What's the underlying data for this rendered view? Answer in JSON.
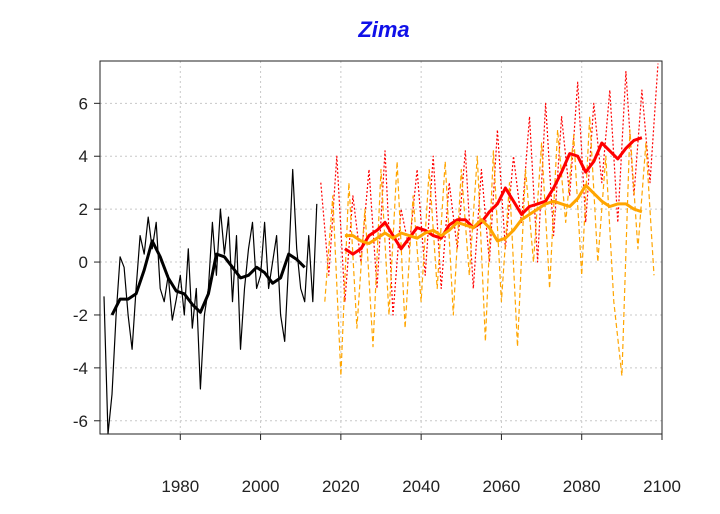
{
  "chart_data": {
    "type": "line",
    "title": "Zima",
    "xlabel": "",
    "ylabel": "",
    "xlim": [
      1960,
      2100
    ],
    "ylim": [
      -6.5,
      7.6
    ],
    "x_ticks": [
      1980,
      2000,
      2020,
      2040,
      2060,
      2080,
      2100
    ],
    "y_ticks": [
      -6,
      -4,
      -2,
      0,
      2,
      4,
      6
    ],
    "grid": true,
    "grid_style": "dotted",
    "legend": "none",
    "colors": {
      "title": "#1010e8",
      "observed": "#000000",
      "scenario_high": "#ff0000",
      "scenario_low": "#ffa500"
    },
    "series": [
      {
        "key": "observed_annual",
        "style": "solid-thin",
        "color": "#000000",
        "x": [
          1961,
          1962,
          1963,
          1964,
          1965,
          1966,
          1967,
          1968,
          1969,
          1970,
          1971,
          1972,
          1973,
          1974,
          1975,
          1976,
          1977,
          1978,
          1979,
          1980,
          1981,
          1982,
          1983,
          1984,
          1985,
          1986,
          1987,
          1988,
          1989,
          1990,
          1991,
          1992,
          1993,
          1994,
          1995,
          1996,
          1997,
          1998,
          1999,
          2000,
          2001,
          2002,
          2003,
          2004,
          2005,
          2006,
          2007,
          2008,
          2009,
          2010,
          2011,
          2012,
          2013,
          2014
        ],
        "y": [
          -1.3,
          -6.5,
          -5.0,
          -2.0,
          0.2,
          -0.2,
          -2.0,
          -3.3,
          -1.0,
          1.0,
          0.3,
          1.7,
          0.5,
          1.5,
          -1.0,
          -1.5,
          -0.5,
          -2.2,
          -1.4,
          -0.5,
          -2.0,
          0.5,
          -2.5,
          -1.0,
          -4.8,
          -2.0,
          -1.0,
          1.5,
          -0.5,
          2.0,
          0.3,
          1.7,
          -1.5,
          1.0,
          -3.3,
          -1.0,
          0.5,
          1.5,
          -1.0,
          -0.5,
          1.5,
          -1.0,
          0.0,
          1.0,
          -2.0,
          -3.0,
          0.0,
          3.5,
          0.5,
          -1.0,
          -1.5,
          1.0,
          -1.5,
          2.2
        ]
      },
      {
        "key": "observed_smooth",
        "style": "solid-thick",
        "color": "#000000",
        "x": [
          1963,
          1965,
          1967,
          1969,
          1971,
          1973,
          1975,
          1977,
          1979,
          1981,
          1983,
          1985,
          1987,
          1989,
          1991,
          1993,
          1995,
          1997,
          1999,
          2001,
          2003,
          2005,
          2007,
          2009,
          2011
        ],
        "y": [
          -2.0,
          -1.4,
          -1.4,
          -1.2,
          -0.3,
          0.8,
          0.2,
          -0.6,
          -1.1,
          -1.2,
          -1.6,
          -1.9,
          -1.2,
          0.3,
          0.2,
          -0.2,
          -0.6,
          -0.5,
          -0.2,
          -0.4,
          -0.8,
          -0.6,
          0.3,
          0.1,
          -0.2
        ]
      },
      {
        "key": "scenario_red_annual",
        "style": "dotted-thin",
        "color": "#ff0000",
        "x": [
          2015,
          2017,
          2019,
          2021,
          2023,
          2025,
          2027,
          2029,
          2031,
          2033,
          2035,
          2037,
          2039,
          2041,
          2043,
          2045,
          2047,
          2049,
          2051,
          2053,
          2055,
          2057,
          2059,
          2061,
          2063,
          2065,
          2067,
          2069,
          2071,
          2073,
          2075,
          2077,
          2079,
          2081,
          2083,
          2085,
          2087,
          2089,
          2091,
          2093,
          2095,
          2097,
          2099
        ],
        "y": [
          3.0,
          -0.5,
          4.0,
          -1.5,
          2.5,
          0.0,
          3.5,
          -1.0,
          4.2,
          -2.0,
          2.0,
          0.5,
          3.5,
          -0.5,
          4.0,
          -1.0,
          3.0,
          0.5,
          4.2,
          -1.0,
          3.5,
          0.0,
          5.0,
          0.5,
          4.0,
          1.5,
          5.5,
          0.0,
          6.0,
          1.0,
          5.5,
          2.5,
          6.8,
          1.5,
          6.0,
          3.0,
          6.5,
          1.5,
          7.2,
          2.5,
          6.5,
          3.0,
          7.5
        ]
      },
      {
        "key": "scenario_orange_annual",
        "style": "dashed-thin",
        "color": "#ffa500",
        "x": [
          2016,
          2018,
          2020,
          2022,
          2024,
          2026,
          2028,
          2030,
          2032,
          2034,
          2036,
          2038,
          2040,
          2042,
          2044,
          2046,
          2048,
          2050,
          2052,
          2054,
          2056,
          2058,
          2060,
          2062,
          2064,
          2066,
          2068,
          2070,
          2072,
          2074,
          2076,
          2078,
          2080,
          2082,
          2084,
          2086,
          2088,
          2090,
          2092,
          2094,
          2096,
          2098
        ],
        "y": [
          -1.5,
          2.5,
          -4.3,
          3.0,
          -2.5,
          2.0,
          -3.2,
          3.5,
          -2.0,
          3.8,
          -2.5,
          2.5,
          -1.5,
          3.5,
          -1.0,
          3.8,
          -2.0,
          3.5,
          -0.5,
          4.0,
          -3.0,
          4.2,
          -1.5,
          3.0,
          -3.2,
          3.5,
          0.0,
          4.5,
          -1.0,
          5.0,
          1.5,
          4.8,
          -0.5,
          5.5,
          0.0,
          4.0,
          -1.5,
          -4.3,
          5.0,
          0.5,
          4.5,
          -0.5
        ]
      },
      {
        "key": "scenario_red_smooth",
        "style": "solid-thick",
        "color": "#ff0000",
        "x": [
          2021,
          2023,
          2025,
          2027,
          2029,
          2031,
          2033,
          2035,
          2037,
          2039,
          2041,
          2043,
          2045,
          2047,
          2049,
          2051,
          2053,
          2055,
          2057,
          2059,
          2061,
          2063,
          2065,
          2067,
          2069,
          2071,
          2073,
          2075,
          2077,
          2079,
          2081,
          2083,
          2085,
          2087,
          2089,
          2091,
          2093,
          2095
        ],
        "y": [
          0.5,
          0.3,
          0.5,
          1.0,
          1.2,
          1.5,
          1.0,
          0.5,
          0.9,
          1.3,
          1.2,
          1.0,
          0.9,
          1.4,
          1.6,
          1.6,
          1.3,
          1.5,
          1.9,
          2.2,
          2.8,
          2.3,
          1.8,
          2.1,
          2.2,
          2.3,
          2.8,
          3.4,
          4.1,
          4.0,
          3.4,
          3.8,
          4.5,
          4.2,
          3.9,
          4.3,
          4.6,
          4.7
        ]
      },
      {
        "key": "scenario_orange_smooth",
        "style": "solid-thick",
        "color": "#ffa500",
        "x": [
          2021,
          2023,
          2025,
          2027,
          2029,
          2031,
          2033,
          2035,
          2037,
          2039,
          2041,
          2043,
          2045,
          2047,
          2049,
          2051,
          2053,
          2055,
          2057,
          2059,
          2061,
          2063,
          2065,
          2067,
          2069,
          2071,
          2073,
          2075,
          2077,
          2079,
          2081,
          2083,
          2085,
          2087,
          2089,
          2091,
          2093,
          2095
        ],
        "y": [
          1.0,
          1.0,
          0.8,
          0.7,
          0.9,
          1.1,
          0.9,
          1.1,
          1.0,
          0.9,
          1.1,
          1.2,
          1.0,
          1.2,
          1.5,
          1.4,
          1.3,
          1.6,
          1.3,
          0.8,
          0.9,
          1.2,
          1.6,
          1.8,
          2.0,
          2.2,
          2.3,
          2.2,
          2.1,
          2.4,
          2.9,
          2.6,
          2.3,
          2.1,
          2.2,
          2.2,
          2.0,
          1.9
        ]
      }
    ]
  }
}
